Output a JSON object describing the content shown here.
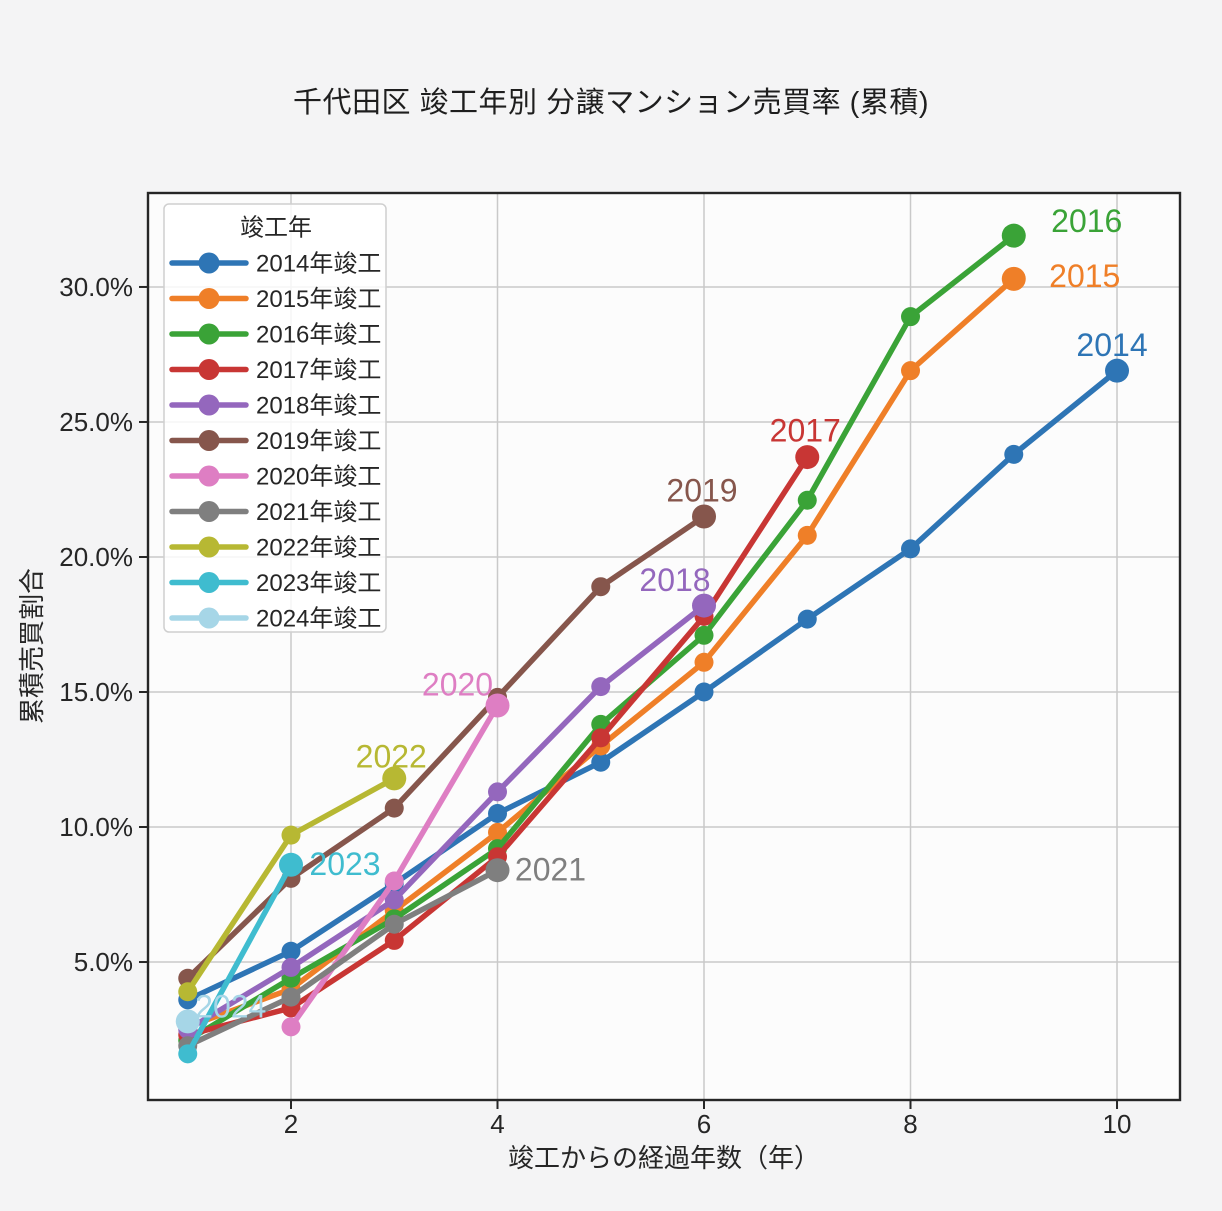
{
  "figure": {
    "background": "#F4F4F5",
    "plot_background": "#FCFCFC",
    "grid_color": "#C9C9C9",
    "spine_color": "#262626",
    "text_color": "#262626"
  },
  "chart_data": {
    "type": "line",
    "title": "千代田区 竣工年別 分譲マンション売買率 (累積)",
    "xlabel": "竣工からの経過年数（年）",
    "ylabel": "累積売買割合",
    "grid": true,
    "legend": {
      "title": "竣工年",
      "position": "upper-left"
    },
    "xlim": [
      0.615,
      10.61
    ],
    "ylim": [
      -0.11,
      33.48
    ],
    "xticks": [
      {
        "value": 2,
        "label": "2"
      },
      {
        "value": 4,
        "label": "4"
      },
      {
        "value": 6,
        "label": "6"
      },
      {
        "value": 8,
        "label": "8"
      },
      {
        "value": 10,
        "label": "10"
      }
    ],
    "yticks": [
      {
        "value": 5,
        "label": "5.0%"
      },
      {
        "value": 10,
        "label": "10.0%"
      },
      {
        "value": 15,
        "label": "15.0%"
      },
      {
        "value": 20,
        "label": "20.0%"
      },
      {
        "value": 25,
        "label": "25.0%"
      },
      {
        "value": 30,
        "label": "30.0%"
      }
    ],
    "series": [
      {
        "legend_label": "2014年竣工",
        "annotation": "2014",
        "color": "#2E75B5",
        "x": [
          1,
          2,
          3,
          4,
          5,
          6,
          7,
          8,
          9,
          10
        ],
        "y": [
          3.6,
          5.4,
          7.9,
          10.5,
          12.4,
          15.0,
          17.7,
          20.3,
          23.8,
          26.9
        ],
        "annotation_offset": [
          -5,
          -26
        ]
      },
      {
        "legend_label": "2015年竣工",
        "annotation": "2015",
        "color": "#EF7F28",
        "x": [
          1,
          2,
          3,
          4,
          5,
          6,
          7,
          8,
          9
        ],
        "y": [
          2.6,
          4.0,
          6.9,
          9.8,
          13.0,
          16.1,
          20.8,
          26.9,
          30.3
        ],
        "annotation_offset": [
          71,
          -3
        ]
      },
      {
        "legend_label": "2016年竣工",
        "annotation": "2016",
        "color": "#3AA337",
        "x": [
          1,
          2,
          3,
          4,
          5,
          6,
          7,
          8,
          9
        ],
        "y": [
          2.1,
          4.4,
          6.6,
          9.2,
          13.8,
          17.1,
          22.1,
          28.9,
          31.9
        ],
        "annotation_offset": [
          73,
          -15
        ]
      },
      {
        "legend_label": "2017年竣工",
        "annotation": "2017",
        "color": "#C83634",
        "x": [
          1,
          2,
          3,
          4,
          5,
          6,
          7
        ],
        "y": [
          2.3,
          3.3,
          5.8,
          8.9,
          13.3,
          17.8,
          23.7
        ],
        "annotation_offset": [
          -2,
          -27
        ]
      },
      {
        "legend_label": "2018年竣工",
        "annotation": "2018",
        "color": "#9467BD",
        "x": [
          1,
          2,
          3,
          4,
          5,
          6
        ],
        "y": [
          2.5,
          4.8,
          7.3,
          11.3,
          15.2,
          18.2
        ],
        "annotation_offset": [
          -29,
          -26
        ]
      },
      {
        "legend_label": "2019年竣工",
        "annotation": "2019",
        "color": "#86564C",
        "x": [
          1,
          2,
          3,
          4,
          5,
          6
        ],
        "y": [
          4.4,
          8.1,
          10.7,
          14.8,
          18.9,
          21.5
        ],
        "annotation_offset": [
          -2,
          -26
        ]
      },
      {
        "legend_label": "2020年竣工",
        "annotation": "2020",
        "color": "#DE7EC3",
        "x": [
          2,
          3,
          4
        ],
        "y": [
          2.6,
          8.0,
          14.5
        ],
        "annotation_offset": [
          -40,
          -21
        ]
      },
      {
        "legend_label": "2021年竣工",
        "annotation": "2021",
        "color": "#7F7F7F",
        "x": [
          1,
          2,
          3,
          4
        ],
        "y": [
          1.9,
          3.7,
          6.4,
          8.4
        ],
        "annotation_offset": [
          53,
          -1
        ]
      },
      {
        "legend_label": "2022年竣工",
        "annotation": "2022",
        "color": "#B7B833",
        "x": [
          1,
          2,
          3
        ],
        "y": [
          3.9,
          9.7,
          11.8
        ],
        "annotation_offset": [
          -3,
          -22
        ]
      },
      {
        "legend_label": "2023年竣工",
        "annotation": "2023",
        "color": "#3FBCCF",
        "x": [
          1,
          2
        ],
        "y": [
          1.6,
          8.6
        ],
        "annotation_offset": [
          54,
          -1
        ]
      },
      {
        "legend_label": "2024年竣工",
        "annotation": "2024",
        "color": "#A6D6E7",
        "x": [
          1
        ],
        "y": [
          2.8
        ],
        "annotation_offset": [
          43,
          -15
        ]
      }
    ]
  }
}
